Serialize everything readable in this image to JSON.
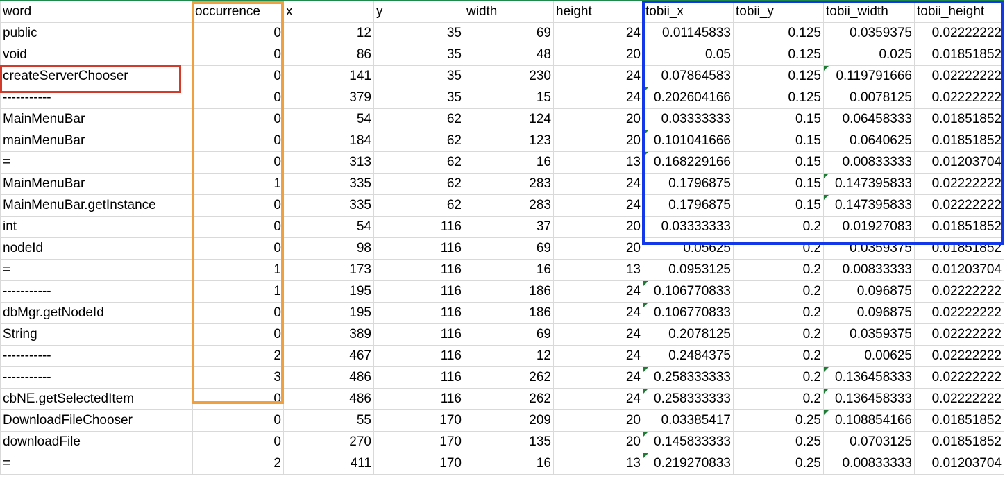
{
  "columns": [
    "word",
    "occurrence",
    "x",
    "y",
    "width",
    "height",
    "tobii_x",
    "tobii_y",
    "tobii_width",
    "tobii_height"
  ],
  "rows": [
    {
      "cells": [
        "public",
        "0",
        "12",
        "35",
        "69",
        "24",
        "0.01145833",
        "0.125",
        "0.0359375",
        "0.02222222"
      ],
      "flags": []
    },
    {
      "cells": [
        "void",
        "0",
        "86",
        "35",
        "48",
        "20",
        "0.05",
        "0.125",
        "0.025",
        "0.01851852"
      ],
      "flags": []
    },
    {
      "cells": [
        "createServerChooser",
        "0",
        "141",
        "35",
        "230",
        "24",
        "0.07864583",
        "0.125",
        "0.119791666",
        "0.02222222"
      ],
      "flags": [
        8
      ]
    },
    {
      "cells": [
        "-----------",
        "0",
        "379",
        "35",
        "15",
        "24",
        "0.202604166",
        "0.125",
        "0.0078125",
        "0.02222222"
      ],
      "flags": [
        6
      ]
    },
    {
      "cells": [
        "MainMenuBar",
        "0",
        "54",
        "62",
        "124",
        "20",
        "0.03333333",
        "0.15",
        "0.06458333",
        "0.01851852"
      ],
      "flags": []
    },
    {
      "cells": [
        "mainMenuBar",
        "0",
        "184",
        "62",
        "123",
        "20",
        "0.101041666",
        "0.15",
        "0.0640625",
        "0.01851852"
      ],
      "flags": [
        6
      ]
    },
    {
      "cells": [
        "=",
        "0",
        "313",
        "62",
        "16",
        "13",
        "0.168229166",
        "0.15",
        "0.00833333",
        "0.01203704"
      ],
      "flags": [
        6
      ]
    },
    {
      "cells": [
        "MainMenuBar",
        "1",
        "335",
        "62",
        "283",
        "24",
        "0.1796875",
        "0.15",
        "0.147395833",
        "0.02222222"
      ],
      "flags": [
        8
      ]
    },
    {
      "cells": [
        "MainMenuBar.getInstance",
        "0",
        "335",
        "62",
        "283",
        "24",
        "0.1796875",
        "0.15",
        "0.147395833",
        "0.02222222"
      ],
      "flags": [
        8
      ]
    },
    {
      "cells": [
        "int",
        "0",
        "54",
        "116",
        "37",
        "20",
        "0.03333333",
        "0.2",
        "0.01927083",
        "0.01851852"
      ],
      "flags": []
    },
    {
      "cells": [
        "nodeId",
        "0",
        "98",
        "116",
        "69",
        "20",
        "0.05625",
        "0.2",
        "0.0359375",
        "0.01851852"
      ],
      "flags": []
    },
    {
      "cells": [
        "=",
        "1",
        "173",
        "116",
        "16",
        "13",
        "0.0953125",
        "0.2",
        "0.00833333",
        "0.01203704"
      ],
      "flags": []
    },
    {
      "cells": [
        "-----------",
        "1",
        "195",
        "116",
        "186",
        "24",
        "0.106770833",
        "0.2",
        "0.096875",
        "0.02222222"
      ],
      "flags": [
        6
      ]
    },
    {
      "cells": [
        "dbMgr.getNodeId",
        "0",
        "195",
        "116",
        "186",
        "24",
        "0.106770833",
        "0.2",
        "0.096875",
        "0.02222222"
      ],
      "flags": [
        6
      ]
    },
    {
      "cells": [
        "String",
        "0",
        "389",
        "116",
        "69",
        "24",
        "0.2078125",
        "0.2",
        "0.0359375",
        "0.02222222"
      ],
      "flags": []
    },
    {
      "cells": [
        "-----------",
        "2",
        "467",
        "116",
        "12",
        "24",
        "0.2484375",
        "0.2",
        "0.00625",
        "0.02222222"
      ],
      "flags": []
    },
    {
      "cells": [
        "-----------",
        "3",
        "486",
        "116",
        "262",
        "24",
        "0.258333333",
        "0.2",
        "0.136458333",
        "0.02222222"
      ],
      "flags": [
        6,
        8
      ]
    },
    {
      "cells": [
        "cbNE.getSelectedItem",
        "0",
        "486",
        "116",
        "262",
        "24",
        "0.258333333",
        "0.2",
        "0.136458333",
        "0.02222222"
      ],
      "flags": [
        6,
        8
      ]
    },
    {
      "cells": [
        "DownloadFileChooser",
        "0",
        "55",
        "170",
        "209",
        "20",
        "0.03385417",
        "0.25",
        "0.108854166",
        "0.01851852"
      ],
      "flags": [
        8
      ]
    },
    {
      "cells": [
        "downloadFile",
        "0",
        "270",
        "170",
        "135",
        "20",
        "0.145833333",
        "0.25",
        "0.0703125",
        "0.01851852"
      ],
      "flags": [
        6
      ]
    },
    {
      "cells": [
        "=",
        "2",
        "411",
        "170",
        "16",
        "13",
        "0.219270833",
        "0.25",
        "0.00833333",
        "0.01203704"
      ],
      "flags": [
        6
      ]
    }
  ],
  "colors": {
    "occurrence_highlight": "#f0a040",
    "tobii_highlight": "#1238e8",
    "word_highlight": "#d23a2a",
    "comment_marker": "#1e7d34"
  }
}
